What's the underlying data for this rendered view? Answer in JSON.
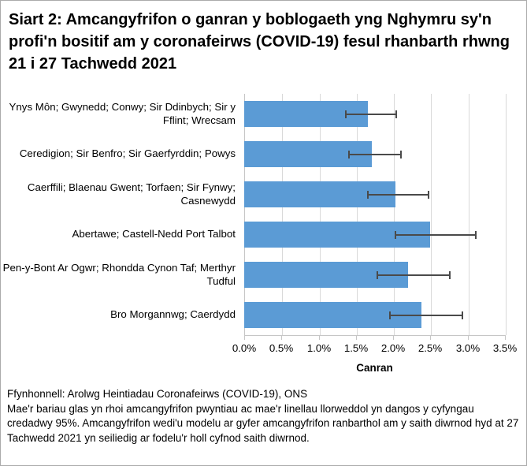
{
  "title": "Siart 2: Amcangyfrifon o ganran y boblogaeth yng Nghymru sy'n profi'n bositif am y coronafeirws (COVID-19) fesul rhanbarth rhwng 21 i 27 Tachwedd 2021",
  "chart_data": {
    "type": "bar",
    "orientation": "horizontal",
    "categories": [
      "Ynys Môn; Gwynedd; Conwy; Sir Ddinbych; Sir y Fflint; Wrecsam",
      "Ceredigion; Sir Benfro; Sir Gaerfyrddin; Powys",
      "Caerffili; Blaenau Gwent; Torfaen; Sir Fynwy; Casnewydd",
      "Abertawe; Castell-Nedd Port Talbot",
      "Pen-y-Bont Ar Ogwr; Rhondda Cynon Taf; Merthyr Tudful",
      "Bro Morgannwg; Caerdydd"
    ],
    "values": [
      1.66,
      1.71,
      2.03,
      2.5,
      2.2,
      2.38
    ],
    "ci_low": [
      1.35,
      1.4,
      1.65,
      2.02,
      1.78,
      1.95
    ],
    "ci_high": [
      2.05,
      2.12,
      2.49,
      3.12,
      2.77,
      2.94
    ],
    "x_ticks": [
      "0.0%",
      "0.5%",
      "1.0%",
      "1.5%",
      "2.0%",
      "2.5%",
      "3.0%",
      "3.5%"
    ],
    "xlim": [
      0,
      3.5
    ],
    "xlabel": "Canran",
    "grid": true,
    "legend": "none",
    "bar_color": "#5b9bd5",
    "errorbar_color": "#4a4a4a",
    "gridline_color": "#d9d9d9",
    "axis_line_color": "#c6c6c6"
  },
  "footer": {
    "source": "Ffynhonnell: Arolwg Heintiadau Coronafeirws (COVID-19), ONS",
    "note": "Mae'r bariau glas yn rhoi amcangyfrifon pwyntiau ac mae'r linellau llorweddol yn dangos y cyfyngau credadwy 95%. Amcangyfrifon wedi'u modelu ar gyfer amcangyfrifon ranbarthol am y saith diwrnod hyd at 27 Tachwedd 2021 yn seiliedig ar fodelu'r holl cyfnod saith diwrnod."
  }
}
